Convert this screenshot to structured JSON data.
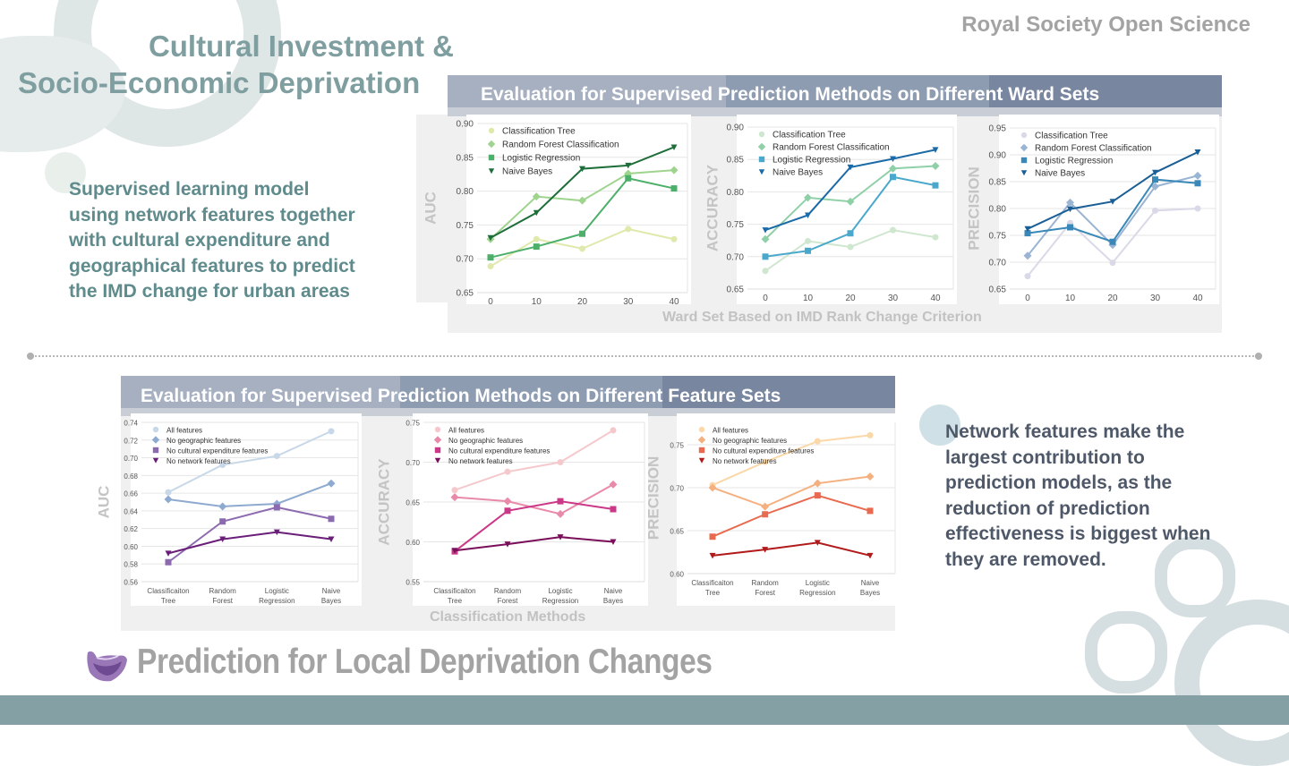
{
  "journal": "Royal Society Open Science",
  "title": {
    "line1": "Cultural Investment &",
    "line2": "Socio-Economic Deprivation"
  },
  "left_blurb": [
    "Supervised learning model",
    "using network features together",
    "with cultural expenditure and",
    "geographical features to predict",
    "the IMD  change for urban areas"
  ],
  "right_blurb": [
    "Network features make the",
    "largest contribution to",
    "prediction models, as the",
    "reduction of prediction",
    "effectiveness is biggest when",
    "they are removed."
  ],
  "top_panel": {
    "title": "Evaluation for Supervised Prediction Methods on Different Ward Sets",
    "xlabel": "Ward Set Based on IMD Rank Change Criterion"
  },
  "bottom_panel": {
    "title": "Evaluation for Supervised Prediction Methods on Different Feature Sets",
    "xlabel": "Classification Methods"
  },
  "bottom_title": "Prediction for Local Deprivation Changes",
  "logo_icon": "purple-crystal-bowl-icon",
  "colors": {
    "title": "#7f9ea0",
    "left_blurb": "#5f8b8c",
    "right_blurb": "#4e5868",
    "footer": "#85a0a4"
  },
  "chart_data": [
    {
      "type": "line",
      "ylabel": "AUC",
      "categories": [
        "0",
        "10",
        "20",
        "30",
        "40"
      ],
      "ylim": [
        0.65,
        0.9
      ],
      "yticks": [
        "0.65",
        "0.70",
        "0.75",
        "0.80",
        "0.85",
        "0.90"
      ],
      "grid": true,
      "legend": "top-left",
      "series": [
        {
          "name": "Classification Tree",
          "marker": "circle",
          "color": "#dfe9ab",
          "values": [
            0.689,
            0.729,
            0.715,
            0.744,
            0.729
          ]
        },
        {
          "name": "Random Forest Classification",
          "marker": "diamond",
          "color": "#9fd48e",
          "values": [
            0.729,
            0.792,
            0.786,
            0.826,
            0.831
          ]
        },
        {
          "name": "Logistic Regression",
          "marker": "square",
          "color": "#4caf6a",
          "values": [
            0.702,
            0.718,
            0.737,
            0.819,
            0.804
          ]
        },
        {
          "name": "Naive Bayes",
          "marker": "triangle-down",
          "color": "#1e6e3a",
          "values": [
            0.731,
            0.768,
            0.833,
            0.838,
            0.865
          ]
        }
      ]
    },
    {
      "type": "line",
      "ylabel": "ACCURACY",
      "categories": [
        "0",
        "10",
        "20",
        "30",
        "40"
      ],
      "ylim": [
        0.65,
        0.9
      ],
      "yticks": [
        "0.65",
        "0.70",
        "0.75",
        "0.80",
        "0.85",
        "0.90"
      ],
      "grid": true,
      "legend": "top-left",
      "series": [
        {
          "name": "Classification Tree",
          "marker": "circle",
          "color": "#cfe6cf",
          "values": [
            0.678,
            0.724,
            0.715,
            0.741,
            0.73
          ]
        },
        {
          "name": "Random Forest Classification",
          "marker": "diamond",
          "color": "#8fd0a8",
          "values": [
            0.727,
            0.791,
            0.785,
            0.836,
            0.84
          ]
        },
        {
          "name": "Logistic Regression",
          "marker": "square",
          "color": "#4aa8cc",
          "values": [
            0.7,
            0.709,
            0.736,
            0.823,
            0.81
          ]
        },
        {
          "name": "Naive Bayes",
          "marker": "triangle-down",
          "color": "#1a6aa8",
          "values": [
            0.741,
            0.764,
            0.838,
            0.851,
            0.865
          ]
        }
      ]
    },
    {
      "type": "line",
      "ylabel": "PRECISION",
      "categories": [
        "0",
        "10",
        "20",
        "30",
        "40"
      ],
      "ylim": [
        0.65,
        0.95
      ],
      "yticks": [
        "0.65",
        "0.70",
        "0.75",
        "0.80",
        "0.85",
        "0.90",
        "0.95"
      ],
      "grid": true,
      "legend": "top-left",
      "series": [
        {
          "name": "Classification Tree",
          "marker": "circle",
          "color": "#d9d9e8",
          "values": [
            0.674,
            0.773,
            0.699,
            0.796,
            0.8
          ]
        },
        {
          "name": "Random Forest Classification",
          "marker": "diamond",
          "color": "#9ab4d4",
          "values": [
            0.712,
            0.811,
            0.732,
            0.841,
            0.861
          ]
        },
        {
          "name": "Logistic Regression",
          "marker": "square",
          "color": "#3a88b8",
          "values": [
            0.754,
            0.765,
            0.738,
            0.854,
            0.847
          ]
        },
        {
          "name": "Naive Bayes",
          "marker": "triangle-down",
          "color": "#1a5e96",
          "values": [
            0.762,
            0.799,
            0.813,
            0.867,
            0.905
          ]
        }
      ]
    },
    {
      "type": "line",
      "ylabel": "AUC",
      "categories": [
        [
          "Classificaiton",
          "Tree"
        ],
        [
          "Random",
          "Forest"
        ],
        [
          "Logistic",
          "Regression"
        ],
        [
          "Naive",
          "Bayes"
        ]
      ],
      "ylim": [
        0.56,
        0.74
      ],
      "yticks": [
        "0.56",
        "0.58",
        "0.60",
        "0.62",
        "0.64",
        "0.66",
        "0.68",
        "0.70",
        "0.72",
        "0.74"
      ],
      "grid": true,
      "legend": "top-left",
      "series": [
        {
          "name": "All features",
          "marker": "circle",
          "color": "#c8d8e8",
          "values": [
            0.661,
            0.692,
            0.702,
            0.73
          ]
        },
        {
          "name": "No geographic features",
          "marker": "diamond",
          "color": "#8eaad0",
          "values": [
            0.653,
            0.645,
            0.648,
            0.671
          ]
        },
        {
          "name": "No cultural expenditure features",
          "marker": "square",
          "color": "#8c6ab0",
          "values": [
            0.582,
            0.628,
            0.644,
            0.631
          ]
        },
        {
          "name": "No network features",
          "marker": "triangle-down",
          "color": "#6a1e7a",
          "values": [
            0.592,
            0.608,
            0.616,
            0.608
          ]
        }
      ]
    },
    {
      "type": "line",
      "ylabel": "ACCURACY",
      "categories": [
        [
          "Classificaiton",
          "Tree"
        ],
        [
          "Random",
          "Forest"
        ],
        [
          "Logistic",
          "Regression"
        ],
        [
          "Naive",
          "Bayes"
        ]
      ],
      "ylim": [
        0.55,
        0.75
      ],
      "yticks": [
        "0.55",
        "0.60",
        "0.65",
        "0.70",
        "0.75"
      ],
      "grid": true,
      "legend": "top-left",
      "series": [
        {
          "name": "All features",
          "marker": "circle",
          "color": "#f5c8cc",
          "values": [
            0.665,
            0.688,
            0.7,
            0.74
          ]
        },
        {
          "name": "No geographic features",
          "marker": "diamond",
          "color": "#e88aa8",
          "values": [
            0.656,
            0.651,
            0.635,
            0.672
          ]
        },
        {
          "name": "No cultural expenditure features",
          "marker": "square",
          "color": "#cc3888",
          "values": [
            0.588,
            0.639,
            0.651,
            0.641
          ]
        },
        {
          "name": "No network features",
          "marker": "triangle-down",
          "color": "#7a0e5a",
          "values": [
            0.589,
            0.597,
            0.606,
            0.6
          ]
        }
      ]
    },
    {
      "type": "line",
      "ylabel": "PRECISION",
      "categories": [
        [
          "Classificaiton",
          "Tree"
        ],
        [
          "Random",
          "Forest"
        ],
        [
          "Logistic",
          "Regression"
        ],
        [
          "Naive",
          "Bayes"
        ]
      ],
      "ylim": [
        0.6,
        0.776
      ],
      "yticks": [
        "0.60",
        "0.65",
        "0.70",
        "0.75"
      ],
      "grid": true,
      "legend": "top-left",
      "series": [
        {
          "name": "All features",
          "marker": "circle",
          "color": "#fad8a8",
          "values": [
            0.703,
            0.73,
            0.754,
            0.761
          ]
        },
        {
          "name": "No geographic features",
          "marker": "diamond",
          "color": "#f5b080",
          "values": [
            0.7,
            0.678,
            0.705,
            0.713
          ]
        },
        {
          "name": "No cultural expenditure features",
          "marker": "square",
          "color": "#e86a50",
          "values": [
            0.643,
            0.669,
            0.691,
            0.673
          ]
        },
        {
          "name": "No network features",
          "marker": "triangle-down",
          "color": "#b01a1a",
          "values": [
            0.621,
            0.628,
            0.636,
            0.621
          ]
        }
      ]
    }
  ]
}
